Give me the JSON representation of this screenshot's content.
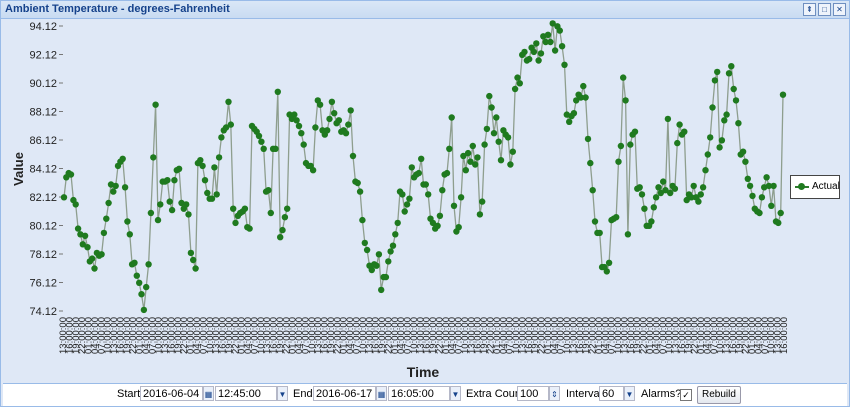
{
  "window": {
    "title": "Ambient Temperature - degrees-Fahrenheit"
  },
  "chart_data": {
    "type": "line",
    "xlabel": "Time",
    "ylabel": "Value",
    "ylim": [
      74.12,
      94.12
    ],
    "yticks": [
      "94.12",
      "92.12",
      "90.12",
      "88.12",
      "86.12",
      "84.12",
      "82.12",
      "80.12",
      "78.12",
      "76.12",
      "74.12"
    ],
    "xtick_labels": [
      "13:00:00",
      "16:00:00",
      "19:00:00",
      "22:00:00",
      "01:00:00",
      "04:00:00",
      "07:00:00",
      "10:00:00",
      "13:00:00",
      "16:00:00",
      "19:00:00",
      "22:00:00",
      "01:00:00",
      "04:00:00",
      "07:00:00",
      "10:00:00",
      "13:00:00",
      "16:00:00",
      "19:00:00",
      "22:00:00",
      "01:00:00",
      "04:00:00",
      "07:00:00",
      "10:00:00",
      "13:00:00",
      "16:00:00",
      "19:00:00",
      "22:00:00",
      "01:00:00",
      "04:00:00",
      "07:00:00",
      "10:00:00",
      "13:00:00",
      "16:00:00",
      "19:00:00",
      "22:00:00",
      "01:00:00",
      "04:00:00",
      "07:00:00",
      "10:00:00",
      "13:00:00",
      "16:00:00",
      "19:00:00",
      "22:00:00",
      "01:00:00",
      "04:00:00",
      "07:00:00",
      "10:00:00",
      "13:00:00",
      "16:00:00",
      "19:00:00",
      "22:00:00",
      "01:00:00",
      "04:00:00",
      "07:00:00",
      "10:00:00",
      "13:00:00",
      "16:00:00",
      "19:00:00",
      "22:00:00",
      "01:00:00",
      "04:00:00",
      "07:00:00",
      "10:00:00",
      "13:00:00",
      "16:00:00",
      "19:00:00",
      "22:00:00",
      "01:00:00",
      "04:00:00",
      "07:00:00",
      "10:00:00",
      "13:00:00",
      "16:00:00",
      "19:00:00",
      "22:00:00",
      "01:00:00",
      "04:00:00",
      "07:00:00",
      "10:00:00",
      "13:00:00",
      "16:00:00",
      "19:00:00",
      "22:00:00",
      "01:00:00",
      "04:00:00",
      "07:00:00",
      "10:00:00",
      "13:00:00",
      "16:00:00",
      "19:00:00",
      "22:00:00",
      "01:00:00",
      "04:00:00",
      "07:00:00",
      "10:00:00",
      "13:00:00",
      "16:00:00",
      "19:00:00",
      "22:00:00",
      "01:00:00",
      "04:00:00",
      "07:00:00",
      "10:00:00",
      "13:00:00",
      "16:00:00",
      "19:00:00",
      "22:00:00",
      "01:00:00",
      "04:00:00",
      "07:00:00",
      "10:00:00",
      "13:00:00",
      "16:00:00"
    ],
    "series": [
      {
        "name": "Actual",
        "color": "#1f7a1f",
        "values": [
          82.1,
          83.5,
          83.8,
          83.7,
          81.9,
          81.6,
          79.9,
          79.5,
          78.8,
          79.4,
          78.6,
          77.6,
          77.8,
          77.1,
          78.2,
          78.0,
          78.1,
          79.6,
          80.6,
          81.7,
          83.0,
          82.5,
          82.9,
          84.3,
          84.6,
          84.8,
          82.8,
          80.4,
          79.5,
          77.4,
          77.5,
          76.6,
          76.1,
          75.3,
          74.2,
          75.8,
          77.4,
          81.0,
          84.9,
          88.6,
          80.5,
          81.6,
          83.2,
          83.2,
          83.3,
          81.8,
          81.2,
          83.3,
          84.0,
          84.1,
          81.7,
          81.3,
          81.6,
          80.9,
          78.2,
          77.7,
          77.1,
          84.5,
          84.7,
          84.3,
          83.3,
          82.4,
          82.0,
          82.0,
          84.2,
          82.3,
          84.9,
          86.3,
          86.8,
          87.0,
          88.8,
          87.2,
          81.3,
          80.3,
          80.8,
          81.0,
          81.1,
          81.3,
          80.0,
          79.9,
          87.1,
          86.9,
          86.7,
          86.4,
          86.0,
          85.5,
          82.5,
          82.6,
          81.0,
          85.5,
          85.5,
          89.5,
          79.3,
          79.8,
          80.7,
          81.3,
          87.9,
          87.6,
          87.9,
          87.5,
          87.1,
          86.6,
          85.8,
          84.5,
          84.3,
          84.3,
          84.0,
          87.0,
          88.9,
          88.6,
          86.8,
          86.5,
          86.8,
          87.6,
          88.8,
          88.0,
          87.3,
          87.5,
          86.7,
          86.8,
          86.6,
          87.2,
          88.2,
          85.0,
          83.2,
          83.1,
          82.5,
          80.5,
          78.9,
          78.4,
          77.3,
          77.0,
          77.4,
          77.3,
          78.1,
          75.6,
          76.5,
          76.5,
          77.6,
          78.3,
          78.7,
          79.5,
          80.3,
          82.5,
          82.3,
          81.1,
          81.6,
          82.0,
          84.2,
          83.5,
          83.7,
          83.8,
          84.8,
          83.0,
          83.0,
          82.3,
          80.6,
          80.3,
          79.9,
          80.1,
          80.8,
          82.6,
          83.7,
          83.8,
          85.5,
          87.7,
          81.5,
          79.7,
          80.0,
          82.1,
          85.0,
          84.0,
          85.2,
          84.6,
          85.7,
          84.4,
          84.9,
          80.9,
          81.8,
          85.8,
          86.9,
          89.2,
          88.4,
          86.6,
          87.7,
          86.0,
          84.7,
          86.8,
          86.5,
          86.3,
          84.4,
          85.3,
          89.7,
          90.5,
          90.1,
          92.1,
          92.3,
          91.7,
          91.8,
          92.6,
          92.3,
          92.9,
          91.7,
          92.2,
          93.4,
          93.0,
          93.5,
          93.0,
          94.3,
          92.4,
          94.1,
          93.8,
          92.7,
          91.4,
          87.9,
          87.4,
          87.8,
          88.0,
          88.9,
          89.3,
          89.1,
          89.9,
          89.1,
          86.2,
          84.5,
          82.6,
          80.4,
          79.6,
          79.6,
          77.2,
          77.2,
          76.9,
          77.5,
          80.5,
          80.6,
          80.7,
          84.6,
          85.7,
          90.5,
          88.9,
          79.5,
          85.8,
          86.5,
          86.7,
          82.7,
          82.8,
          82.3,
          81.3,
          80.1,
          80.1,
          80.4,
          81.4,
          82.1,
          82.8,
          82.4,
          83.2,
          82.6,
          87.6,
          82.4,
          82.9,
          82.7,
          85.9,
          87.2,
          86.5,
          86.7,
          81.9,
          82.3,
          82.1,
          82.9,
          82.1,
          81.8,
          82.3,
          82.8,
          84.0,
          85.1,
          86.3,
          88.4,
          90.3,
          90.9,
          85.6,
          86.1,
          87.5,
          87.9,
          90.8,
          91.3,
          89.7,
          88.9,
          87.3,
          85.1,
          85.3,
          84.6,
          83.4,
          82.9,
          82.2,
          81.3,
          81.1,
          81.0,
          82.1,
          82.8,
          83.5,
          82.9,
          81.5,
          82.9,
          80.4,
          80.3,
          81.0,
          89.3
        ]
      }
    ],
    "legend": {
      "position": "right",
      "label": "Actual"
    },
    "grid": false
  },
  "toolbar": {
    "start_label": "Start",
    "start_date": "2016-06-04",
    "start_time": "12:45:00",
    "end_label": "End",
    "end_date": "2016-06-17",
    "end_time": "16:05:00",
    "extra_count_label": "Extra Count",
    "extra_count": "100",
    "interval_label": "Interval",
    "interval": "60",
    "alarms_label": "Alarms?",
    "alarms_checked": "✓",
    "rebuild_label": "Rebuild"
  },
  "icons": {
    "calendar": "calendar-icon",
    "dropdown": "chevron-down-icon",
    "spinner": "spinner-icon",
    "collapse": "collapse-icon",
    "maximize": "maximize-icon",
    "close": "close-icon"
  }
}
